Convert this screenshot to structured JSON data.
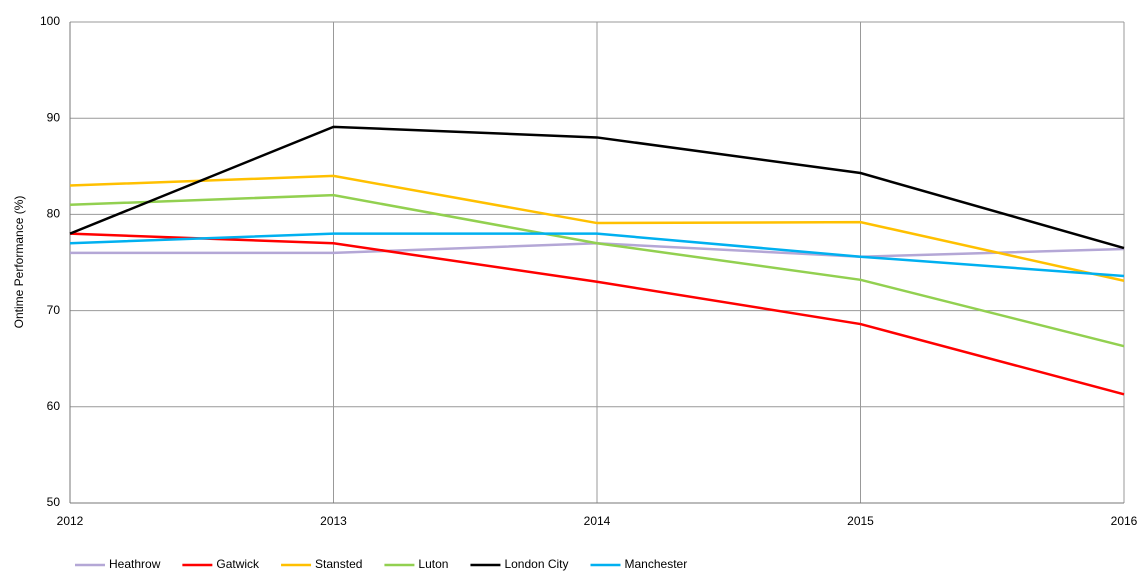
{
  "chart_data": {
    "type": "line",
    "y_label": "Ontime Performance (%)",
    "x": [
      2012,
      2013,
      2014,
      2015,
      2016
    ],
    "xlim": [
      2012,
      2016
    ],
    "xticks": [
      2012,
      2013,
      2014,
      2015,
      2016
    ],
    "ylim": [
      50,
      100
    ],
    "yticks": [
      50,
      60,
      70,
      80,
      90,
      100
    ],
    "grid": true,
    "legend": "bottom",
    "series": [
      {
        "name": "Heathrow",
        "color": "#b4a7d6",
        "values": [
          76,
          76,
          77,
          75.6,
          76.4
        ]
      },
      {
        "name": "Gatwick",
        "color": "#ff0000",
        "values": [
          78,
          77,
          73,
          68.6,
          61.3
        ]
      },
      {
        "name": "Stansted",
        "color": "#ffc000",
        "values": [
          83,
          84,
          79.1,
          79.2,
          73.1
        ]
      },
      {
        "name": "Luton",
        "color": "#92d050",
        "values": [
          81,
          82,
          77,
          73.2,
          66.3
        ]
      },
      {
        "name": "London City",
        "color": "#000000",
        "values": [
          78,
          89.1,
          88,
          84.3,
          76.5
        ]
      },
      {
        "name": "Manchester",
        "color": "#00b0f0",
        "values": [
          77,
          78,
          78,
          75.6,
          73.6
        ]
      }
    ]
  }
}
